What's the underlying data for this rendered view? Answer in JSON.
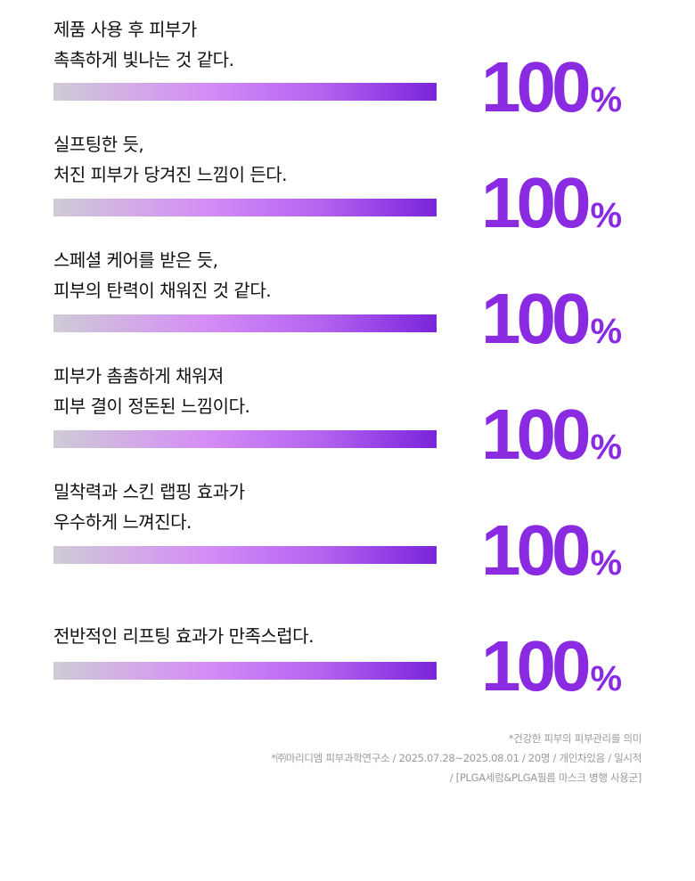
{
  "items": [
    {
      "lines": [
        "제품 사용 후 피부가",
        "촉촉하게 빛나는 것 같다."
      ],
      "value": 100,
      "unit": "%"
    },
    {
      "lines": [
        "실프팅한 듯,",
        "처진 피부가 당겨진 느낌이 든다."
      ],
      "value": 100,
      "unit": "%"
    },
    {
      "lines": [
        "스페셜 케어를 받은 듯,",
        "피부의 탄력이 채워진 것 같다."
      ],
      "value": 100,
      "unit": "%"
    },
    {
      "lines": [
        "피부가 촘촘하게 채워져",
        "피부 결이 정돈된 느낌이다."
      ],
      "value": 100,
      "unit": "%"
    },
    {
      "lines": [
        "밀착력과 스킨 랩핑 효과가",
        "우수하게 느껴진다."
      ],
      "value": 100,
      "unit": "%"
    },
    {
      "lines": [
        "전반적인 리프팅 효과가 만족스럽다."
      ],
      "value": 100,
      "unit": "%"
    }
  ],
  "footnotes": [
    "*건강한 피부의 피부관리를 의미",
    "*㈜마리디엠 피부과학연구소 / 2025.07.28~2025.08.01 / 20명 / 개인차있음 / 일시적",
    "/ [PLGA세럼&PLGA필름 마스크 병행 사용군]"
  ],
  "colors": {
    "accent": "#8a2be2",
    "bar_start": "#cfcbd6",
    "bar_mid": "#d48df5",
    "bar_end": "#7a24dc",
    "footnote": "#9a9a9a"
  }
}
